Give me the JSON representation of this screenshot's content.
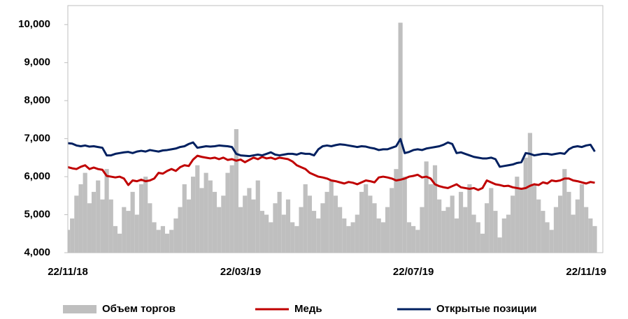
{
  "chart_data": {
    "type": "combo",
    "categories": [
      "22/11/18",
      null,
      null,
      null,
      null,
      null,
      null,
      null,
      null,
      null,
      null,
      null,
      null,
      null,
      null,
      null,
      null,
      null,
      null,
      null,
      null,
      null,
      null,
      null,
      null,
      null,
      null,
      null,
      null,
      null,
      null,
      null,
      null,
      null,
      null,
      null,
      null,
      null,
      null,
      null,
      "22/03/19",
      null,
      null,
      null,
      null,
      null,
      null,
      null,
      null,
      null,
      null,
      null,
      null,
      null,
      null,
      null,
      null,
      null,
      null,
      null,
      null,
      null,
      null,
      null,
      null,
      null,
      null,
      null,
      null,
      null,
      null,
      null,
      null,
      null,
      null,
      null,
      null,
      null,
      null,
      null,
      "22/07/19",
      null,
      null,
      null,
      null,
      null,
      null,
      null,
      null,
      null,
      null,
      null,
      null,
      null,
      null,
      null,
      null,
      null,
      null,
      null,
      null,
      null,
      null,
      null,
      null,
      null,
      null,
      null,
      null,
      null,
      null,
      null,
      null,
      null,
      null,
      null,
      null,
      null,
      null,
      null,
      "22/11/19",
      null,
      null
    ],
    "series": [
      {
        "name": "Объем торгов",
        "type": "bar",
        "color": "#bfbfbf",
        "values": [
          4600,
          4900,
          5500,
          5800,
          6100,
          5300,
          5600,
          5900,
          5400,
          6200,
          5400,
          4700,
          4500,
          5200,
          5100,
          5600,
          5000,
          5800,
          6000,
          5300,
          4800,
          4600,
          4700,
          4500,
          4600,
          4900,
          5200,
          5800,
          5400,
          6000,
          6300,
          5700,
          6100,
          5900,
          5600,
          5200,
          5500,
          6100,
          6300,
          7250,
          5200,
          5500,
          5700,
          5400,
          5900,
          5100,
          5000,
          4800,
          5300,
          5600,
          5000,
          5400,
          4800,
          4700,
          5200,
          5800,
          5500,
          5100,
          4900,
          5300,
          5600,
          5900,
          5500,
          5200,
          4900,
          4700,
          4800,
          5000,
          5600,
          5800,
          5500,
          5300,
          4900,
          4800,
          5200,
          5700,
          6200,
          10050,
          6000,
          4800,
          4700,
          4600,
          5200,
          6400,
          5800,
          6300,
          5400,
          5100,
          5200,
          5500,
          4900,
          5600,
          5200,
          5800,
          5000,
          4800,
          4500,
          5300,
          5700,
          5100,
          4400,
          4900,
          5000,
          5500,
          6000,
          5700,
          6500,
          7150,
          5800,
          5400,
          5100,
          4800,
          4600,
          5200,
          5500,
          6200,
          5600,
          5000,
          5400,
          5800,
          5200,
          4900,
          4700
        ]
      },
      {
        "name": "Медь",
        "type": "line",
        "color": "#c00000",
        "values": [
          6250,
          6220,
          6200,
          6260,
          6300,
          6200,
          6240,
          6200,
          6180,
          6020,
          6000,
          5980,
          6000,
          5950,
          5780,
          5900,
          5880,
          5920,
          5880,
          5900,
          5950,
          6100,
          6080,
          6150,
          6200,
          6150,
          6250,
          6300,
          6280,
          6450,
          6550,
          6520,
          6500,
          6480,
          6500,
          6460,
          6500,
          6440,
          6460,
          6420,
          6450,
          6380,
          6440,
          6500,
          6460,
          6520,
          6480,
          6500,
          6460,
          6500,
          6480,
          6460,
          6400,
          6300,
          6250,
          6200,
          6100,
          6050,
          6000,
          5980,
          5950,
          5900,
          5880,
          5850,
          5820,
          5860,
          5840,
          5800,
          5850,
          5900,
          5880,
          5850,
          5980,
          6000,
          5980,
          5950,
          5900,
          5920,
          5950,
          6000,
          6020,
          6050,
          5980,
          6000,
          5950,
          5800,
          5750,
          5720,
          5700,
          5750,
          5800,
          5720,
          5700,
          5680,
          5700,
          5650,
          5700,
          5900,
          5850,
          5800,
          5780,
          5750,
          5760,
          5720,
          5700,
          5680,
          5700,
          5760,
          5800,
          5780,
          5850,
          5820,
          5900,
          5880,
          5900,
          5950,
          5950,
          5900,
          5880,
          5850,
          5820,
          5860,
          5840
        ]
      },
      {
        "name": "Открытые позиции",
        "type": "line",
        "color": "#002060",
        "values": [
          6880,
          6870,
          6820,
          6800,
          6820,
          6790,
          6800,
          6780,
          6760,
          6560,
          6560,
          6600,
          6620,
          6640,
          6650,
          6620,
          6660,
          6680,
          6660,
          6700,
          6680,
          6660,
          6690,
          6700,
          6720,
          6740,
          6780,
          6800,
          6860,
          6900,
          6760,
          6780,
          6800,
          6790,
          6800,
          6820,
          6810,
          6800,
          6780,
          6600,
          6560,
          6550,
          6540,
          6560,
          6580,
          6560,
          6600,
          6640,
          6580,
          6560,
          6580,
          6600,
          6600,
          6580,
          6620,
          6600,
          6600,
          6560,
          6720,
          6800,
          6820,
          6800,
          6830,
          6850,
          6840,
          6820,
          6800,
          6780,
          6800,
          6790,
          6760,
          6740,
          6700,
          6720,
          6720,
          6760,
          6800,
          6990,
          6620,
          6650,
          6700,
          6720,
          6700,
          6740,
          6760,
          6780,
          6800,
          6840,
          6900,
          6860,
          6620,
          6640,
          6600,
          6560,
          6520,
          6500,
          6480,
          6480,
          6500,
          6460,
          6260,
          6280,
          6300,
          6320,
          6360,
          6380,
          6620,
          6600,
          6560,
          6580,
          6600,
          6600,
          6580,
          6600,
          6620,
          6600,
          6720,
          6780,
          6800,
          6780,
          6820,
          6840,
          6660
        ]
      }
    ],
    "ylim": [
      4000,
      10500
    ],
    "yticks": [
      {
        "value": 4000,
        "label": "4,000"
      },
      {
        "value": 5000,
        "label": "5,000"
      },
      {
        "value": 6000,
        "label": "6,000"
      },
      {
        "value": 7000,
        "label": "7,000"
      },
      {
        "value": 8000,
        "label": "8,000"
      },
      {
        "value": 9000,
        "label": "9,000"
      },
      {
        "value": 10000,
        "label": "10,000"
      }
    ],
    "grid": false,
    "legend": "bottom"
  }
}
